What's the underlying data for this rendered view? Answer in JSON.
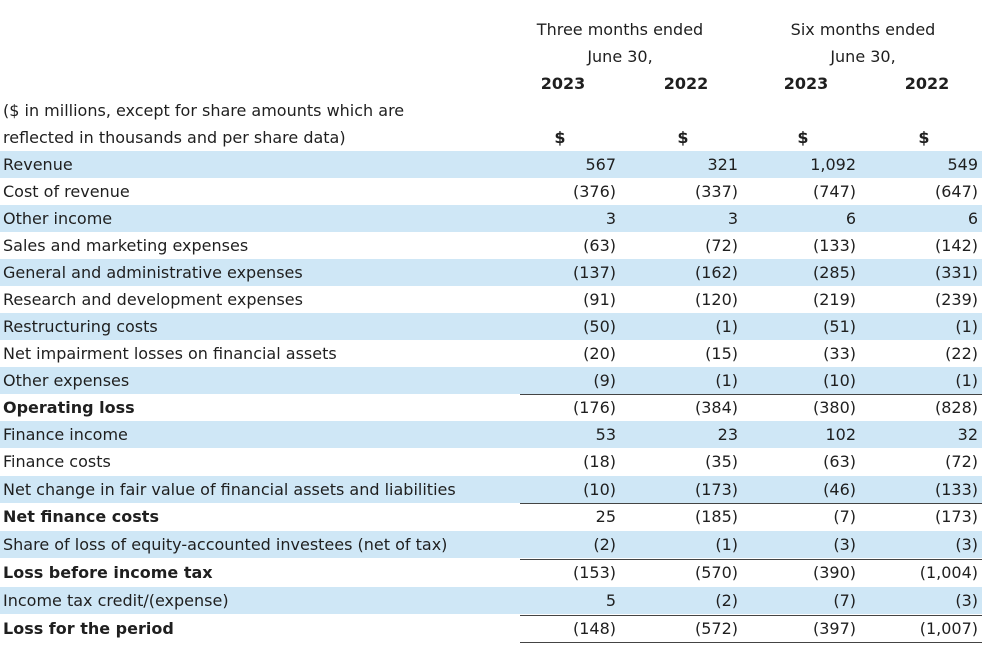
{
  "header": {
    "three_months": "Three months ended",
    "six_months": "Six months ended",
    "period_end_1": "June 30,",
    "period_end_2": "June 30,",
    "year_1": "2023",
    "year_2": "2022",
    "year_3": "2023",
    "year_4": "2022",
    "note_line_1": "($ in millions, except for share amounts which are",
    "note_line_2": "reflected in thousands and per share data)",
    "currency_1": "$",
    "currency_2": "$",
    "currency_3": "$",
    "currency_4": "$"
  },
  "rows": [
    {
      "label": "Revenue",
      "values": [
        "567",
        "321",
        "1,092",
        "549"
      ]
    },
    {
      "label": "Cost of revenue",
      "values": [
        "(376)",
        "(337)",
        "(747)",
        "(647)"
      ]
    },
    {
      "label": "Other income",
      "values": [
        "3",
        "3",
        "6",
        "6"
      ]
    },
    {
      "label": "Sales and marketing expenses",
      "values": [
        "(63)",
        "(72)",
        "(133)",
        "(142)"
      ]
    },
    {
      "label": "General and administrative expenses",
      "values": [
        "(137)",
        "(162)",
        "(285)",
        "(331)"
      ]
    },
    {
      "label": "Research and development expenses",
      "values": [
        "(91)",
        "(120)",
        "(219)",
        "(239)"
      ]
    },
    {
      "label": "Restructuring costs",
      "values": [
        "(50)",
        "(1)",
        "(51)",
        "(1)"
      ]
    },
    {
      "label": "Net impairment losses on financial assets",
      "values": [
        "(20)",
        "(15)",
        "(33)",
        "(22)"
      ]
    },
    {
      "label": "Other expenses",
      "values": [
        "(9)",
        "(1)",
        "(10)",
        "(1)"
      ]
    },
    {
      "label": "Operating loss",
      "values": [
        "(176)",
        "(384)",
        "(380)",
        "(828)"
      ]
    },
    {
      "label": "Finance income",
      "values": [
        "53",
        "23",
        "102",
        "32"
      ]
    },
    {
      "label": "Finance costs",
      "values": [
        "(18)",
        "(35)",
        "(63)",
        "(72)"
      ]
    },
    {
      "label": "Net change in fair value of financial assets and liabilities",
      "values": [
        "(10)",
        "(173)",
        "(46)",
        "(133)"
      ]
    },
    {
      "label": "Net finance costs",
      "values": [
        "25",
        "(185)",
        "(7)",
        "(173)"
      ]
    },
    {
      "label": "Share of loss of equity-accounted investees (net of tax)",
      "values": [
        "(2)",
        "(1)",
        "(3)",
        "(3)"
      ]
    },
    {
      "label": "Loss before income tax",
      "values": [
        "(153)",
        "(570)",
        "(390)",
        "(1,004)"
      ]
    },
    {
      "label": "Income tax credit/(expense)",
      "values": [
        "5",
        "(2)",
        "(7)",
        "(3)"
      ]
    },
    {
      "label": "Loss for the period",
      "values": [
        "(148)",
        "(572)",
        "(397)",
        "(1,007)"
      ]
    }
  ]
}
